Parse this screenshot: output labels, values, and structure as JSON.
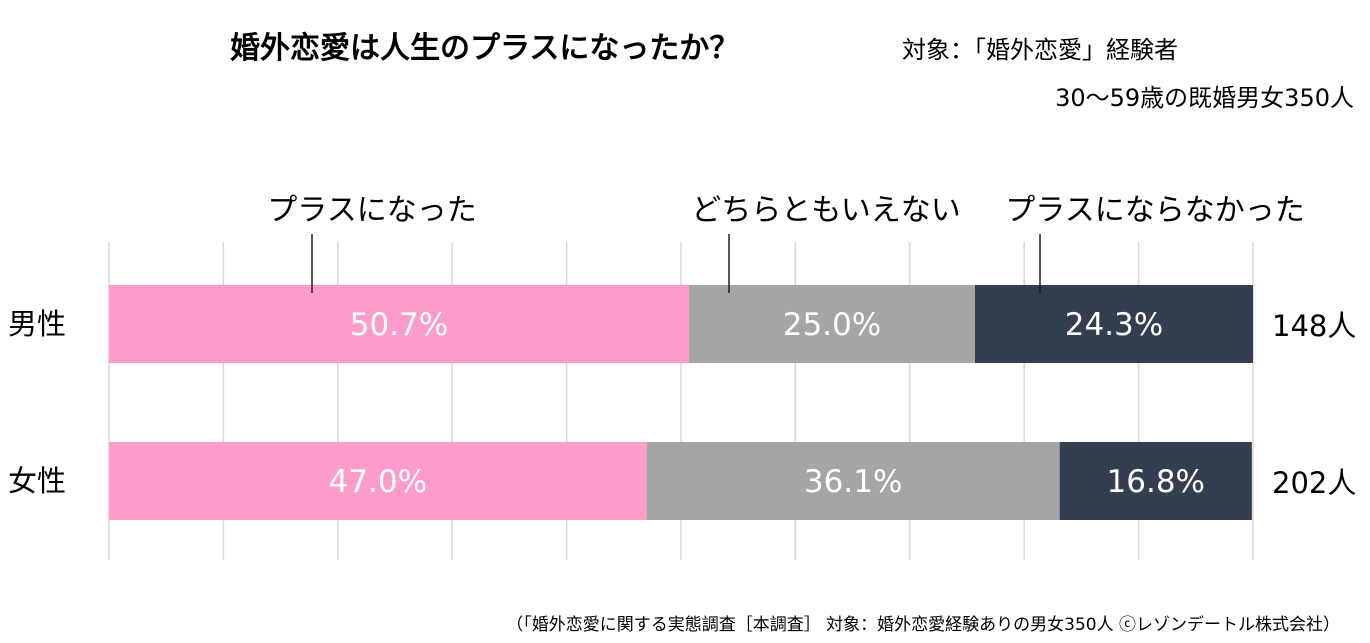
{
  "header": {
    "title": "婚外恋愛は人生のプラスになったか？",
    "target": "対象：「婚外恋愛」経験者",
    "sample": "30～59歳の既婚男女350人"
  },
  "footer": {
    "source": "（「婚外恋愛に関する実態調査［本調査］ 対象：婚外恋愛経験ありの男女350人 ⓒレゾンデートル株式会社）"
  },
  "chart_data": {
    "type": "bar",
    "orientation": "horizontal",
    "stacked": true,
    "percent_scale": [
      0,
      100
    ],
    "grid": true,
    "legend_position": "top",
    "categories": [
      "男性",
      "女性"
    ],
    "respondents": [
      "148人",
      "202人"
    ],
    "series": [
      {
        "name": "プラスになった",
        "color": "#fd9bcb",
        "values": [
          50.7,
          47.0
        ],
        "labels": [
          "50.7%",
          "47.0%"
        ]
      },
      {
        "name": "どちらともいえない",
        "color": "#a5a5a5",
        "values": [
          25.0,
          36.1
        ],
        "labels": [
          "25.0%",
          "36.1%"
        ]
      },
      {
        "name": "プラスにならなかった",
        "color": "#333f50",
        "values": [
          24.3,
          16.8
        ],
        "labels": [
          "24.3%",
          "16.8%"
        ]
      }
    ]
  }
}
